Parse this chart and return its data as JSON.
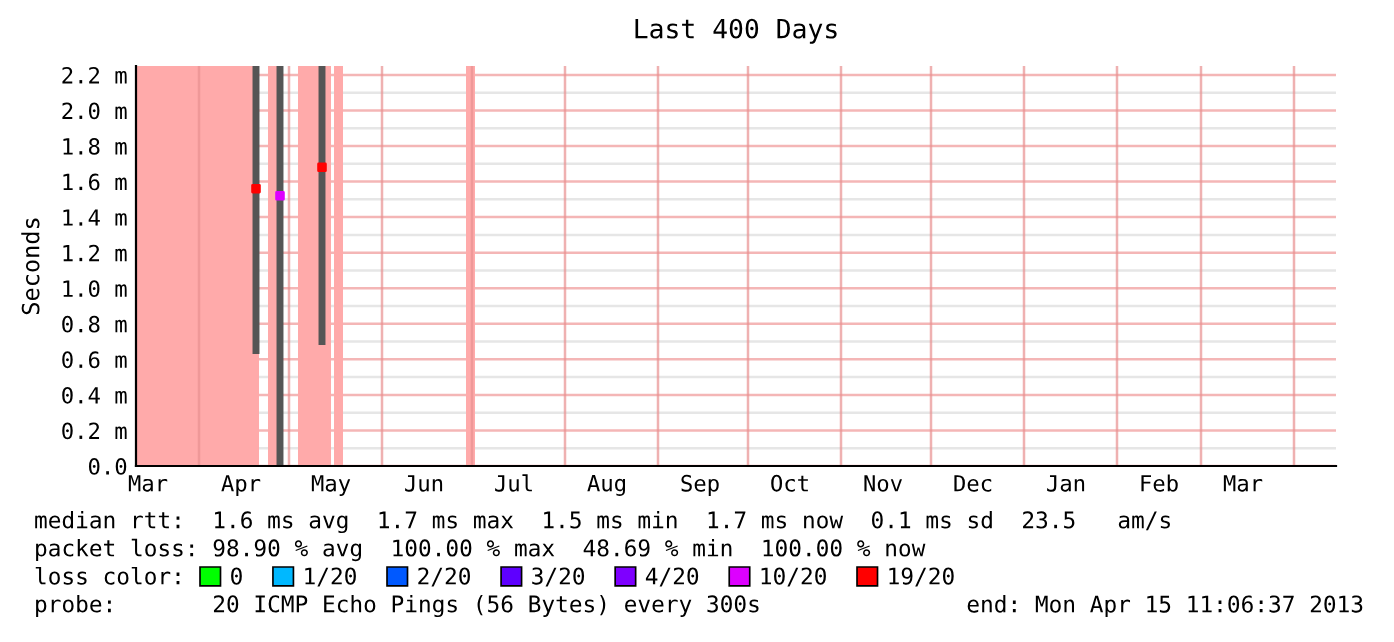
{
  "chart_data": {
    "type": "scatter",
    "title": "Last 400 Days",
    "ylabel": "Seconds",
    "x": [
      "2012-04-20",
      "2012-04-28",
      "2012-05-12"
    ],
    "series": [
      {
        "name": "0",
        "color": "#00ff00",
        "values": [
          null,
          null,
          null
        ]
      },
      {
        "name": "1/20",
        "color": "#00b8ff",
        "values": [
          null,
          null,
          null
        ]
      },
      {
        "name": "2/20",
        "color": "#0059ff",
        "values": [
          null,
          null,
          null
        ]
      },
      {
        "name": "3/20",
        "color": "#5e00ff",
        "values": [
          null,
          null,
          null
        ]
      },
      {
        "name": "4/20",
        "color": "#7e00ff",
        "values": [
          null,
          null,
          null
        ]
      },
      {
        "name": "10/20",
        "color": "#dd00ff",
        "values": [
          null,
          1.52,
          null
        ],
        "errors": [
          null,
          [
            0.0,
            2.25
          ],
          null
        ]
      },
      {
        "name": "19/20",
        "color": "#ff0000",
        "values": [
          1.56,
          null,
          1.68
        ],
        "errors": [
          [
            0.63,
            2.25
          ],
          null,
          [
            0.68,
            2.25
          ]
        ]
      }
    ],
    "legend_title": "loss color:",
    "legend": "bottom",
    "marker": "square",
    "bands": [
      {
        "axis": "x",
        "from": "2012-03-11",
        "to": "2012-04-21",
        "color": "#ffaaaa"
      },
      {
        "axis": "x",
        "from": "2012-04-24",
        "to": "2012-04-28",
        "color": "#ffaaaa"
      },
      {
        "axis": "x",
        "from": "2012-05-04",
        "to": "2012-05-15",
        "color": "#ffaaaa"
      },
      {
        "axis": "x",
        "from": "2012-05-16",
        "to": "2012-05-19",
        "color": "#ffaaaa"
      },
      {
        "axis": "x",
        "from": "2012-06-29",
        "to": "2012-07-02",
        "color": "#ffaaaa"
      }
    ],
    "xlim": [
      "2012-03-11",
      "2013-04-15"
    ],
    "xticks": [
      {
        "value": "2012-03-15",
        "label": "Mar"
      },
      {
        "value": "2012-04-01",
        "label": null
      },
      {
        "value": "2012-04-15",
        "label": "Apr"
      },
      {
        "value": "2012-05-01",
        "label": null
      },
      {
        "value": "2012-05-15",
        "label": "May"
      },
      {
        "value": "2012-06-01",
        "label": null
      },
      {
        "value": "2012-06-15",
        "label": "Jun"
      },
      {
        "value": "2012-07-01",
        "label": null
      },
      {
        "value": "2012-07-15",
        "label": "Jul"
      },
      {
        "value": "2012-08-01",
        "label": null
      },
      {
        "value": "2012-08-15",
        "label": "Aug"
      },
      {
        "value": "2012-09-01",
        "label": null
      },
      {
        "value": "2012-09-15",
        "label": "Sep"
      },
      {
        "value": "2012-10-01",
        "label": null
      },
      {
        "value": "2012-10-15",
        "label": "Oct"
      },
      {
        "value": "2012-11-01",
        "label": null
      },
      {
        "value": "2012-11-15",
        "label": "Nov"
      },
      {
        "value": "2012-12-01",
        "label": null
      },
      {
        "value": "2012-12-15",
        "label": "Dec"
      },
      {
        "value": "2013-01-01",
        "label": null
      },
      {
        "value": "2013-01-15",
        "label": "Jan"
      },
      {
        "value": "2013-02-01",
        "label": null
      },
      {
        "value": "2013-02-15",
        "label": "Feb"
      },
      {
        "value": "2013-03-01",
        "label": null
      },
      {
        "value": "2013-03-15",
        "label": "Mar"
      },
      {
        "value": "2013-04-01",
        "label": null
      }
    ],
    "ylim": [
      0,
      2.25
    ],
    "yticks": [
      {
        "value": 0,
        "label": "0.0"
      },
      {
        "value": 0.1,
        "label": null
      },
      {
        "value": 0.2,
        "label": "0.2 m"
      },
      {
        "value": 0.3,
        "label": null
      },
      {
        "value": 0.4,
        "label": "0.4 m"
      },
      {
        "value": 0.5,
        "label": null
      },
      {
        "value": 0.6,
        "label": "0.6 m"
      },
      {
        "value": 0.7,
        "label": null
      },
      {
        "value": 0.8,
        "label": "0.8 m"
      },
      {
        "value": 0.9,
        "label": null
      },
      {
        "value": 1.0,
        "label": "1.0 m"
      },
      {
        "value": 1.1,
        "label": null
      },
      {
        "value": 1.2,
        "label": "1.2 m"
      },
      {
        "value": 1.3,
        "label": null
      },
      {
        "value": 1.4,
        "label": "1.4 m"
      },
      {
        "value": 1.5,
        "label": null
      },
      {
        "value": 1.6,
        "label": "1.6 m"
      },
      {
        "value": 1.7,
        "label": null
      },
      {
        "value": 1.8,
        "label": "1.8 m"
      },
      {
        "value": 1.9,
        "label": null
      },
      {
        "value": 2.0,
        "label": "2.0 m"
      },
      {
        "value": 2.1,
        "label": null
      },
      {
        "value": 2.2,
        "label": "2.2 m"
      }
    ],
    "grid": true,
    "annotations": [
      "median rtt:  1.6 ms avg  1.7 ms max  1.5 ms min  1.7 ms now  0.1 ms sd  23.5   am/s",
      "packet loss: 98.90 % avg  100.00 % max  48.69 % min  100.00 % now",
      "probe:       20 ICMP Echo Pings (56 Bytes) every 300s",
      "end: Mon Apr 15 11:06:37 2013"
    ]
  }
}
